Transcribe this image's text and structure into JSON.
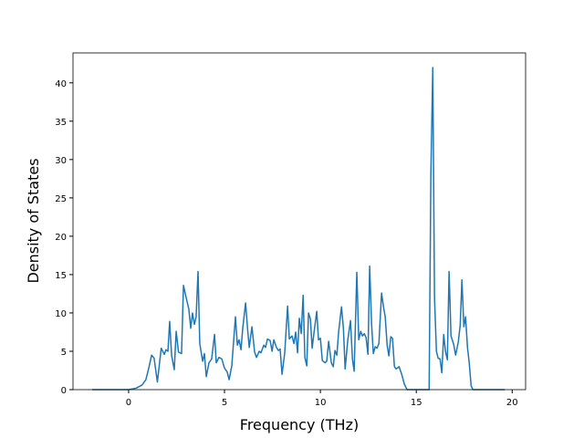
{
  "chart_data": {
    "type": "line",
    "xlabel": "Frequency (THz)",
    "ylabel": "Density of States",
    "xlim": [
      -2.9,
      20.7
    ],
    "ylim": [
      0,
      43.9
    ],
    "xticks": [
      0,
      5,
      10,
      15,
      20
    ],
    "yticks": [
      0,
      5,
      10,
      15,
      20,
      25,
      30,
      35,
      40
    ],
    "x": [
      -1.9,
      0,
      0.4,
      0.7,
      0.9,
      1.05,
      1.2,
      1.33,
      1.5,
      1.7,
      1.86,
      1.95,
      2.05,
      2.14,
      2.24,
      2.38,
      2.48,
      2.6,
      2.76,
      2.86,
      3.0,
      3.14,
      3.24,
      3.33,
      3.43,
      3.52,
      3.62,
      3.71,
      3.86,
      3.95,
      4.05,
      4.19,
      4.33,
      4.48,
      4.57,
      4.71,
      4.86,
      5.0,
      5.14,
      5.24,
      5.38,
      5.57,
      5.67,
      5.76,
      5.86,
      5.95,
      6.1,
      6.2,
      6.29,
      6.43,
      6.57,
      6.67,
      6.81,
      6.9,
      7.05,
      7.14,
      7.24,
      7.38,
      7.48,
      7.57,
      7.71,
      7.81,
      7.9,
      8.0,
      8.14,
      8.29,
      8.38,
      8.52,
      8.62,
      8.71,
      8.81,
      8.9,
      9.0,
      9.1,
      9.19,
      9.29,
      9.38,
      9.48,
      9.57,
      9.67,
      9.81,
      9.9,
      10.0,
      10.1,
      10.24,
      10.33,
      10.43,
      10.57,
      10.67,
      10.76,
      10.86,
      10.95,
      11.1,
      11.2,
      11.29,
      11.43,
      11.57,
      11.67,
      11.76,
      11.9,
      12.0,
      12.1,
      12.19,
      12.29,
      12.38,
      12.48,
      12.57,
      12.67,
      12.76,
      12.86,
      12.95,
      13.05,
      13.19,
      13.29,
      13.38,
      13.48,
      13.57,
      13.67,
      13.76,
      13.86,
      13.95,
      14.1,
      14.24,
      14.38,
      14.52,
      15.67,
      15.76,
      15.86,
      15.95,
      16.05,
      16.14,
      16.24,
      16.33,
      16.43,
      16.52,
      16.62,
      16.71,
      16.81,
      16.95,
      17.05,
      17.19,
      17.29,
      17.38,
      17.48,
      17.57,
      17.67,
      17.76,
      17.86,
      17.95,
      19.62
    ],
    "series": [
      {
        "color": "#1f77b4",
        "values": [
          0,
          0,
          0.2,
          0.6,
          1.3,
          2.8,
          4.5,
          4.1,
          1.0,
          5.4,
          4.6,
          5.2,
          5.0,
          8.9,
          4.5,
          2.6,
          7.6,
          4.9,
          4.7,
          13.6,
          12,
          10.5,
          8,
          10,
          8.5,
          9.5,
          15.4,
          6,
          3.7,
          4.7,
          1.7,
          3.5,
          4,
          7.2,
          3.5,
          4.2,
          4.0,
          2.8,
          2.3,
          1.3,
          3.1,
          9.5,
          5.8,
          6.5,
          5.2,
          8,
          11.3,
          8,
          5.5,
          8.2,
          4.9,
          4.2,
          5.0,
          4.8,
          5.8,
          5.5,
          6.6,
          6.4,
          5.0,
          6.5,
          5.5,
          5.1,
          5.3,
          2.0,
          4.8,
          10.9,
          6.6,
          7.0,
          6.0,
          7.5,
          4.8,
          9.3,
          7.3,
          12.3,
          4.2,
          3.1,
          10,
          9.2,
          5.4,
          7.5,
          10.2,
          6.5,
          6.7,
          3.8,
          3.5,
          3.7,
          6.3,
          3.5,
          3.0,
          5.1,
          4.5,
          7.5,
          10.8,
          8.0,
          2.7,
          6.5,
          9.0,
          4.0,
          2.4,
          15.3,
          6.5,
          7.6,
          7.0,
          7.3,
          6.8,
          4.6,
          16.1,
          8.5,
          4.7,
          5.6,
          5.4,
          6.0,
          12.6,
          10.8,
          9.5,
          5.8,
          4.4,
          6.9,
          6.7,
          3.0,
          2.7,
          3.0,
          2.0,
          0.7,
          0,
          0,
          28,
          42,
          12,
          5,
          4.1,
          4.0,
          2.2,
          7.2,
          5,
          3.9,
          15.4,
          7.0,
          5.9,
          4.5,
          6.2,
          8.4,
          14.3,
          8.2,
          9.5,
          5.5,
          3.5,
          0.5,
          0,
          0
        ]
      }
    ]
  }
}
